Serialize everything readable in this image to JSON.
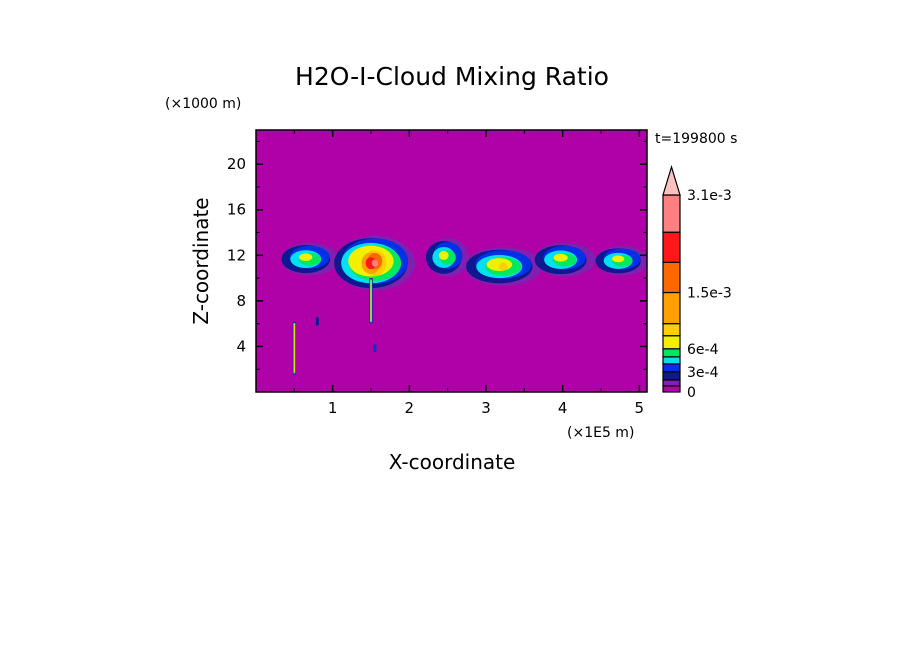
{
  "chart_data": {
    "type": "heatmap",
    "subtype": "filled-contour",
    "title": "H2O-I-Cloud Mixing Ratio",
    "xlabel": "X-coordinate",
    "ylabel": "Z-coordinate",
    "x_unit": "(×1E5 m)",
    "y_unit": "(×1000 m)",
    "time_label": "t=199800 s",
    "xlim": [
      0,
      5.1
    ],
    "ylim": [
      0,
      23
    ],
    "xticks": [
      1,
      2,
      3,
      4,
      5
    ],
    "yticks": [
      4,
      8,
      12,
      16,
      20
    ],
    "background_value": 0,
    "colorbar": {
      "levels": [
        0,
        0.0001,
        0.0002,
        0.0003,
        0.0004,
        0.0005,
        0.0006,
        0.0008,
        0.001,
        0.0015,
        0.002,
        0.0025,
        0.0031
      ],
      "colors": [
        "#b000a8",
        "#8020b0",
        "#101890",
        "#0030e8",
        "#00e0f0",
        "#00e860",
        "#f0f000",
        "#ffd000",
        "#ffa000",
        "#ff6800",
        "#ff1818",
        "#ff8080",
        "#ffc0c0"
      ],
      "tick_labels": [
        "0",
        "3e-4",
        "6e-4",
        "1.5e-3",
        "3.1e-3"
      ],
      "tick_values": [
        0,
        0.0003,
        0.0006,
        0.0015,
        0.0031
      ],
      "extend": "max"
    },
    "cloud_cells": [
      {
        "x": [
          0.3,
          1.05
        ],
        "z": [
          10.3,
          13.2
        ],
        "max_level": 6
      },
      {
        "x": [
          1.0,
          2.05
        ],
        "z": [
          9.0,
          13.8
        ],
        "max_level": 11
      },
      {
        "x": [
          2.2,
          2.75
        ],
        "z": [
          10.2,
          13.6
        ],
        "max_level": 6
      },
      {
        "x": [
          2.7,
          3.7
        ],
        "z": [
          9.4,
          12.8
        ],
        "max_level": 7
      },
      {
        "x": [
          3.6,
          4.4
        ],
        "z": [
          10.2,
          13.2
        ],
        "max_level": 6
      },
      {
        "x": [
          4.4,
          5.1
        ],
        "z": [
          10.3,
          12.9
        ],
        "max_level": 6
      }
    ],
    "streaks": [
      {
        "x": 1.5,
        "z": [
          6.0,
          10.0
        ],
        "max_level": 7
      },
      {
        "x": 0.5,
        "z": [
          1.5,
          6.2
        ],
        "max_level": 6
      },
      {
        "x": 0.8,
        "z": [
          5.8,
          6.6
        ],
        "max_level": 2
      },
      {
        "x": 1.55,
        "z": [
          3.5,
          4.2
        ],
        "max_level": 3
      }
    ]
  }
}
